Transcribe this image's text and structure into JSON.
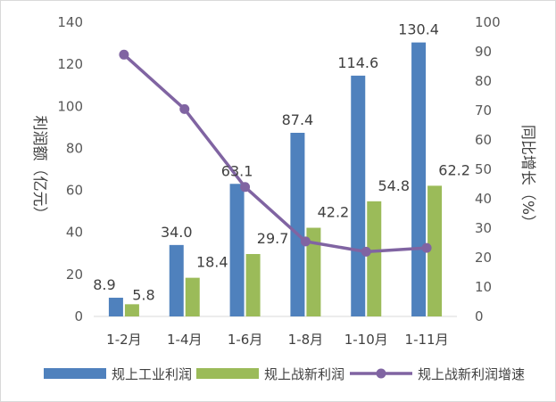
{
  "chart_data": {
    "type": "bar",
    "categories": [
      "1-2月",
      "1-4月",
      "1-6月",
      "1-8月",
      "1-10月",
      "1-11月"
    ],
    "series": [
      {
        "name": "规上工业利润",
        "type": "bar",
        "axis": "left",
        "color": "#4f81bd",
        "values": [
          8.9,
          34.0,
          63.1,
          87.4,
          114.6,
          130.4
        ],
        "labels": [
          "8.9",
          "34.0",
          "63.1",
          "87.4",
          "114.6",
          "130.4"
        ]
      },
      {
        "name": "规上战新利润",
        "type": "bar",
        "axis": "left",
        "color": "#9bbb59",
        "values": [
          5.8,
          18.4,
          29.7,
          42.2,
          54.8,
          62.2
        ],
        "labels": [
          "5.8",
          "18.4",
          "29.7",
          "42.2",
          "54.8",
          "62.2"
        ]
      },
      {
        "name": "规上战新利润增速",
        "type": "line",
        "axis": "right",
        "color": "#8064a2",
        "values": [
          89,
          70.5,
          44,
          25.5,
          22,
          23.3
        ]
      }
    ],
    "y_left": {
      "label": "利润额（亿元）",
      "range": [
        0,
        140
      ],
      "ticks": [
        0,
        20,
        40,
        60,
        80,
        100,
        120,
        140
      ]
    },
    "y_right": {
      "label": "同比增长（%）",
      "range": [
        0,
        100
      ],
      "ticks": [
        0,
        10,
        20,
        30,
        40,
        50,
        60,
        70,
        80,
        90,
        100
      ]
    },
    "legend_position": "bottom",
    "grid": false
  }
}
